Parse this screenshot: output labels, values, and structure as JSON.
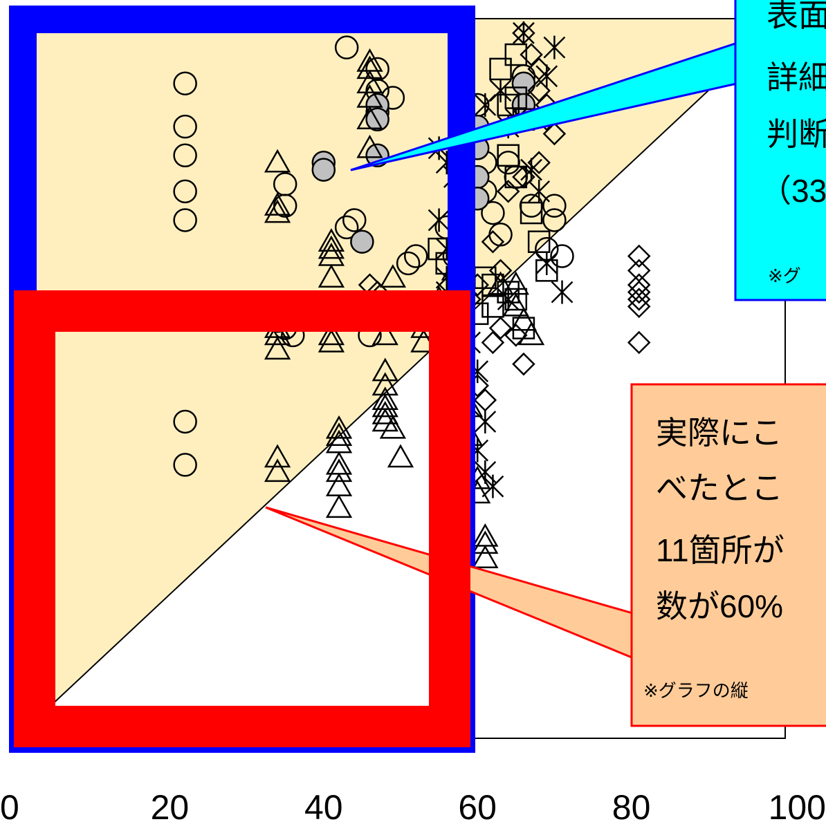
{
  "chart_data": {
    "type": "scatter",
    "title": "",
    "xlabel": "",
    "ylabel": "",
    "xlim": [
      0,
      100
    ],
    "ylim": [
      0,
      100
    ],
    "x_ticks": [
      "0",
      "20",
      "40",
      "60",
      "80",
      "100"
    ],
    "grid": false,
    "diagonal_line": true,
    "shaded_region": "above y = x line",
    "series": [
      {
        "marker": "circle-open",
        "points": [
          [
            22,
            91
          ],
          [
            22,
            85
          ],
          [
            22,
            81
          ],
          [
            22,
            76
          ],
          [
            22,
            72
          ],
          [
            22,
            44
          ],
          [
            22,
            38
          ],
          [
            35,
            77
          ],
          [
            35,
            74
          ],
          [
            36,
            56
          ],
          [
            43,
            96
          ],
          [
            47,
            93
          ],
          [
            47,
            90
          ],
          [
            47,
            87
          ],
          [
            49,
            89
          ],
          [
            44,
            72
          ],
          [
            43,
            71
          ],
          [
            51,
            66
          ],
          [
            52,
            67
          ],
          [
            56,
            71
          ],
          [
            58,
            69
          ],
          [
            57,
            67
          ],
          [
            60,
            88
          ],
          [
            60,
            84
          ],
          [
            61,
            80
          ],
          [
            61,
            76
          ],
          [
            62,
            73
          ],
          [
            63,
            70
          ],
          [
            64,
            80
          ],
          [
            65,
            78
          ],
          [
            66,
            92
          ],
          [
            67,
            74
          ],
          [
            69,
            68
          ],
          [
            70,
            74
          ],
          [
            70,
            72
          ],
          [
            71,
            67
          ],
          [
            34,
            58
          ],
          [
            35,
            57
          ],
          [
            46,
            56
          ]
        ]
      },
      {
        "marker": "circle-filled-gray",
        "points": [
          [
            40,
            80
          ],
          [
            40,
            79
          ],
          [
            47,
            88
          ],
          [
            47,
            86
          ],
          [
            47,
            81
          ],
          [
            45,
            69
          ],
          [
            60,
            85
          ],
          [
            60,
            82
          ],
          [
            60,
            78
          ],
          [
            60,
            75
          ],
          [
            66,
            91
          ],
          [
            66,
            88
          ]
        ]
      },
      {
        "marker": "triangle-open",
        "points": [
          [
            34,
            80
          ],
          [
            34,
            74
          ],
          [
            34,
            73
          ],
          [
            34,
            57
          ],
          [
            34,
            56
          ],
          [
            34,
            54
          ],
          [
            34,
            39
          ],
          [
            34,
            37
          ],
          [
            41,
            69
          ],
          [
            41,
            68
          ],
          [
            41,
            67
          ],
          [
            41,
            64
          ],
          [
            41,
            59
          ],
          [
            41,
            56
          ],
          [
            41,
            55
          ],
          [
            42,
            43
          ],
          [
            42,
            42
          ],
          [
            42,
            41
          ],
          [
            42,
            38
          ],
          [
            42,
            37
          ],
          [
            42,
            35
          ],
          [
            42,
            32
          ],
          [
            41,
            59
          ],
          [
            46,
            94
          ],
          [
            46,
            93
          ],
          [
            46,
            91
          ],
          [
            46,
            89
          ],
          [
            46,
            86
          ],
          [
            46,
            82
          ],
          [
            49,
            64
          ],
          [
            48,
            56
          ],
          [
            48,
            51
          ],
          [
            48,
            49
          ],
          [
            48,
            47
          ],
          [
            48,
            46
          ],
          [
            48,
            45
          ],
          [
            48,
            44
          ],
          [
            49,
            43
          ],
          [
            50,
            39
          ],
          [
            53,
            57
          ],
          [
            53,
            55
          ],
          [
            55,
            61
          ],
          [
            56,
            59
          ],
          [
            57,
            65
          ],
          [
            57,
            60
          ],
          [
            58,
            50
          ],
          [
            59,
            46
          ],
          [
            59,
            42
          ],
          [
            60,
            36
          ],
          [
            60,
            34
          ],
          [
            61,
            28
          ],
          [
            61,
            27
          ],
          [
            61,
            25
          ],
          [
            63,
            63
          ],
          [
            65,
            63
          ],
          [
            65,
            60
          ],
          [
            66,
            58
          ],
          [
            67,
            56
          ]
        ]
      },
      {
        "marker": "square-open",
        "points": [
          [
            63,
            93
          ],
          [
            64,
            88
          ],
          [
            65,
            95
          ],
          [
            65,
            89
          ],
          [
            66,
            86
          ],
          [
            64,
            81
          ],
          [
            65,
            78
          ],
          [
            67,
            73
          ],
          [
            68,
            69
          ],
          [
            69,
            65
          ],
          [
            64,
            62
          ],
          [
            65,
            61
          ],
          [
            66,
            57
          ],
          [
            61,
            64
          ],
          [
            62,
            63
          ],
          [
            62,
            60
          ],
          [
            55,
            68
          ],
          [
            56,
            66
          ],
          [
            58,
            63
          ],
          [
            60,
            59
          ]
        ]
      },
      {
        "marker": "diamond-open",
        "points": [
          [
            66,
            98
          ],
          [
            67,
            95
          ],
          [
            68,
            93
          ],
          [
            68,
            90
          ],
          [
            69,
            88
          ],
          [
            69,
            86
          ],
          [
            70,
            84
          ],
          [
            68,
            80
          ],
          [
            66,
            78
          ],
          [
            64,
            76
          ],
          [
            62,
            69
          ],
          [
            63,
            65
          ],
          [
            60,
            63
          ],
          [
            59,
            61
          ],
          [
            46,
            63
          ],
          [
            47,
            62
          ],
          [
            60,
            49
          ],
          [
            61,
            47
          ],
          [
            62,
            55
          ],
          [
            63,
            57
          ],
          [
            65,
            56
          ],
          [
            66,
            52
          ],
          [
            81,
            67
          ],
          [
            81,
            65
          ],
          [
            81,
            63
          ],
          [
            81,
            62
          ],
          [
            81,
            61
          ],
          [
            81,
            60
          ],
          [
            81,
            55
          ]
        ]
      },
      {
        "marker": "asterisk",
        "points": [
          [
            55,
            82
          ],
          [
            56,
            80
          ],
          [
            57,
            78
          ],
          [
            58,
            76
          ],
          [
            55,
            72
          ],
          [
            56,
            68
          ],
          [
            56,
            64
          ],
          [
            56,
            62
          ],
          [
            57,
            60
          ],
          [
            58,
            58
          ],
          [
            59,
            55
          ],
          [
            60,
            51
          ],
          [
            61,
            44
          ],
          [
            57,
            47
          ],
          [
            58,
            41
          ],
          [
            60,
            40
          ],
          [
            61,
            37
          ],
          [
            62,
            35
          ],
          [
            61,
            88
          ],
          [
            63,
            90
          ],
          [
            64,
            85
          ],
          [
            65,
            86
          ],
          [
            67,
            79
          ],
          [
            68,
            76
          ],
          [
            69,
            66
          ],
          [
            71,
            62
          ],
          [
            64,
            61
          ],
          [
            66,
            98
          ],
          [
            70,
            96
          ],
          [
            69,
            92
          ]
        ]
      }
    ]
  },
  "callout_blue": {
    "lines": [
      "表面",
      "詳細",
      "判断",
      "（33"
    ],
    "note": "※グ",
    "color": "#00ffff"
  },
  "callout_red": {
    "lines": [
      "実際にこ",
      "べたとこ",
      "11箇所が",
      "数が60%"
    ],
    "note": "※グラフの縦",
    "color": "#ffcc99"
  },
  "colors": {
    "blue_frame": "#0000ff",
    "red_frame": "#ff0000",
    "shade": "#ffefbf"
  }
}
